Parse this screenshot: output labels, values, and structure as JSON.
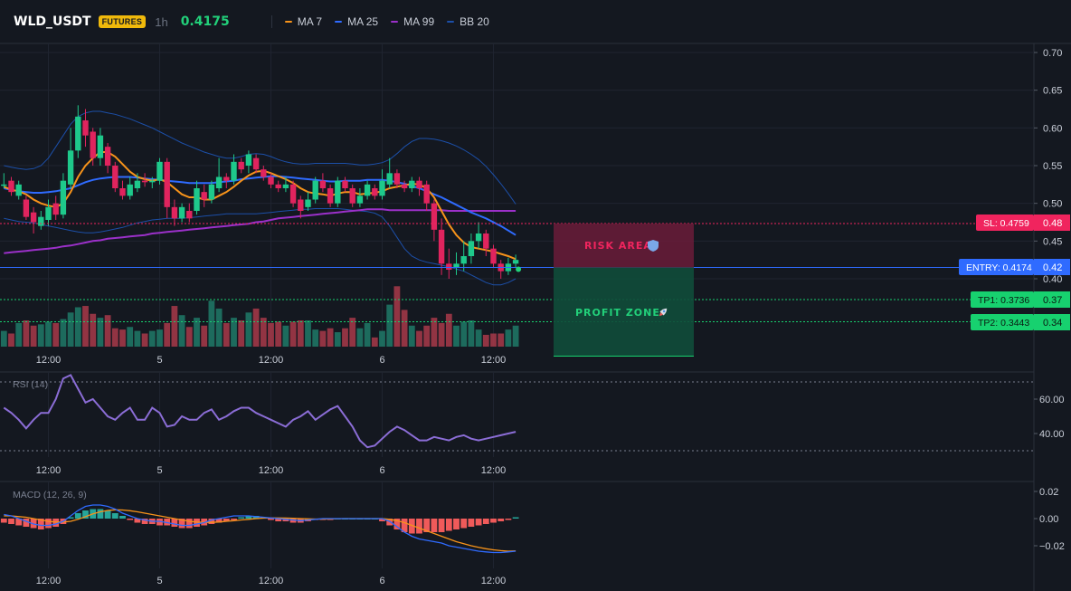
{
  "header": {
    "symbol": "WLD_USDT",
    "badge": "FUTURES",
    "timeframe": "1h",
    "price": "0.4175",
    "indicators": [
      {
        "label": "MA 7",
        "color": "#f7931a"
      },
      {
        "label": "MA 25",
        "color": "#2f6bff"
      },
      {
        "label": "MA 99",
        "color": "#9b30c9"
      },
      {
        "label": "BB 20",
        "color": "#1c4fa8"
      }
    ]
  },
  "colors": {
    "up": "#1ec98b",
    "down": "#e0245e",
    "vol_up": "#1e7a68",
    "vol_down": "#a83a4a",
    "rsi": "#8b6dd6",
    "macd": "#2f6bff",
    "signal": "#f7931a",
    "hist_pos": "#26a69a",
    "hist_neg": "#f05a5a",
    "sl": "#f0245e",
    "entry": "#2f6bff",
    "tp": "#17d16f"
  },
  "chart_data": [
    {
      "type": "candlestick",
      "panel": "price",
      "y_ticks": [
        "0.70",
        "0.65",
        "0.60",
        "0.55",
        "0.50",
        "0.45",
        "0.40"
      ],
      "ylim": [
        0.382,
        0.705
      ],
      "x_ticks": [
        {
          "index": 6,
          "label": "12:00"
        },
        {
          "index": 21,
          "label": "5"
        },
        {
          "index": 36,
          "label": "12:00"
        },
        {
          "index": 51,
          "label": "6"
        },
        {
          "index": 66,
          "label": "12:00"
        }
      ],
      "candles": [
        [
          0.525,
          0.525,
          0.54,
          0.52
        ],
        [
          0.53,
          0.515,
          0.535,
          0.51
        ],
        [
          0.51,
          0.525,
          0.53,
          0.505
        ],
        [
          0.505,
          0.482,
          0.51,
          0.478
        ],
        [
          0.488,
          0.475,
          0.495,
          0.46
        ],
        [
          0.47,
          0.482,
          0.49,
          0.465
        ],
        [
          0.478,
          0.495,
          0.505,
          0.47
        ],
        [
          0.5,
          0.485,
          0.51,
          0.478
        ],
        [
          0.485,
          0.53,
          0.54,
          0.48
        ],
        [
          0.525,
          0.57,
          0.6,
          0.52
        ],
        [
          0.57,
          0.615,
          0.63,
          0.56
        ],
        [
          0.61,
          0.59,
          0.625,
          0.575
        ],
        [
          0.595,
          0.56,
          0.6,
          0.55
        ],
        [
          0.56,
          0.59,
          0.6,
          0.55
        ],
        [
          0.575,
          0.55,
          0.58,
          0.54
        ],
        [
          0.55,
          0.52,
          0.555,
          0.515
        ],
        [
          0.52,
          0.51,
          0.53,
          0.505
        ],
        [
          0.51,
          0.525,
          0.535,
          0.505
        ],
        [
          0.52,
          0.53,
          0.54,
          0.515
        ],
        [
          0.53,
          0.528,
          0.54,
          0.522
        ],
        [
          0.528,
          0.53,
          0.535,
          0.52
        ],
        [
          0.53,
          0.555,
          0.56,
          0.525
        ],
        [
          0.555,
          0.495,
          0.56,
          0.48
        ],
        [
          0.495,
          0.48,
          0.505,
          0.47
        ],
        [
          0.48,
          0.495,
          0.5,
          0.475
        ],
        [
          0.49,
          0.48,
          0.5,
          0.475
        ],
        [
          0.49,
          0.52,
          0.53,
          0.485
        ],
        [
          0.515,
          0.505,
          0.525,
          0.495
        ],
        [
          0.505,
          0.525,
          0.53,
          0.5
        ],
        [
          0.52,
          0.535,
          0.56,
          0.515
        ],
        [
          0.535,
          0.53,
          0.54,
          0.52
        ],
        [
          0.53,
          0.555,
          0.565,
          0.525
        ],
        [
          0.555,
          0.545,
          0.56,
          0.54
        ],
        [
          0.55,
          0.565,
          0.57,
          0.54
        ],
        [
          0.56,
          0.545,
          0.565,
          0.54
        ],
        [
          0.545,
          0.535,
          0.55,
          0.53
        ],
        [
          0.535,
          0.525,
          0.54,
          0.52
        ],
        [
          0.525,
          0.52,
          0.53,
          0.515
        ],
        [
          0.52,
          0.525,
          0.535,
          0.515
        ],
        [
          0.525,
          0.5,
          0.53,
          0.495
        ],
        [
          0.505,
          0.49,
          0.51,
          0.48
        ],
        [
          0.495,
          0.505,
          0.515,
          0.49
        ],
        [
          0.505,
          0.53,
          0.535,
          0.5
        ],
        [
          0.53,
          0.52,
          0.54,
          0.515
        ],
        [
          0.52,
          0.5,
          0.525,
          0.495
        ],
        [
          0.5,
          0.53,
          0.535,
          0.495
        ],
        [
          0.53,
          0.52,
          0.535,
          0.515
        ],
        [
          0.52,
          0.5,
          0.525,
          0.495
        ],
        [
          0.5,
          0.51,
          0.52,
          0.495
        ],
        [
          0.51,
          0.525,
          0.53,
          0.505
        ],
        [
          0.52,
          0.51,
          0.525,
          0.505
        ],
        [
          0.51,
          0.53,
          0.545,
          0.505
        ],
        [
          0.525,
          0.54,
          0.56,
          0.52
        ],
        [
          0.54,
          0.525,
          0.545,
          0.52
        ],
        [
          0.525,
          0.52,
          0.53,
          0.515
        ],
        [
          0.52,
          0.53,
          0.535,
          0.515
        ],
        [
          0.53,
          0.52,
          0.535,
          0.51
        ],
        [
          0.525,
          0.5,
          0.53,
          0.49
        ],
        [
          0.5,
          0.465,
          0.505,
          0.45
        ],
        [
          0.465,
          0.42,
          0.48,
          0.405
        ],
        [
          0.42,
          0.412,
          0.44,
          0.4
        ],
        [
          0.415,
          0.42,
          0.435,
          0.405
        ],
        [
          0.42,
          0.43,
          0.45,
          0.41
        ],
        [
          0.43,
          0.45,
          0.46,
          0.42
        ],
        [
          0.45,
          0.46,
          0.475,
          0.44
        ],
        [
          0.46,
          0.44,
          0.465,
          0.43
        ],
        [
          0.44,
          0.42,
          0.445,
          0.415
        ],
        [
          0.42,
          0.41,
          0.425,
          0.4
        ],
        [
          0.41,
          0.42,
          0.428,
          0.405
        ],
        [
          0.42,
          0.425,
          0.432,
          0.415
        ]
      ],
      "ma7": [
        0.522,
        0.518,
        0.516,
        0.512,
        0.505,
        0.5,
        0.497,
        0.495,
        0.5,
        0.515,
        0.535,
        0.55,
        0.56,
        0.568,
        0.568,
        0.562,
        0.552,
        0.542,
        0.535,
        0.532,
        0.53,
        0.532,
        0.528,
        0.52,
        0.512,
        0.508,
        0.508,
        0.505,
        0.505,
        0.51,
        0.515,
        0.522,
        0.53,
        0.537,
        0.542,
        0.543,
        0.54,
        0.536,
        0.532,
        0.527,
        0.52,
        0.515,
        0.513,
        0.512,
        0.51,
        0.513,
        0.515,
        0.515,
        0.512,
        0.513,
        0.514,
        0.516,
        0.52,
        0.522,
        0.524,
        0.526,
        0.525,
        0.52,
        0.508,
        0.49,
        0.472,
        0.458,
        0.448,
        0.442,
        0.44,
        0.438,
        0.436,
        0.433,
        0.43,
        0.426
      ],
      "ma25": [
        0.52,
        0.518,
        0.516,
        0.515,
        0.514,
        0.514,
        0.515,
        0.516,
        0.518,
        0.52,
        0.524,
        0.528,
        0.531,
        0.533,
        0.534,
        0.535,
        0.535,
        0.535,
        0.534,
        0.533,
        0.532,
        0.531,
        0.53,
        0.529,
        0.528,
        0.527,
        0.527,
        0.527,
        0.527,
        0.528,
        0.529,
        0.53,
        0.532,
        0.533,
        0.534,
        0.535,
        0.536,
        0.536,
        0.535,
        0.534,
        0.533,
        0.532,
        0.531,
        0.53,
        0.529,
        0.529,
        0.53,
        0.53,
        0.53,
        0.531,
        0.531,
        0.531,
        0.53,
        0.528,
        0.526,
        0.523,
        0.52,
        0.516,
        0.512,
        0.508,
        0.503,
        0.498,
        0.493,
        0.488,
        0.484,
        0.48,
        0.475,
        0.47,
        0.464,
        0.458
      ],
      "ma99": [
        0.434,
        0.435,
        0.436,
        0.437,
        0.438,
        0.439,
        0.44,
        0.441,
        0.443,
        0.444,
        0.446,
        0.448,
        0.45,
        0.451,
        0.453,
        0.454,
        0.455,
        0.456,
        0.457,
        0.458,
        0.46,
        0.461,
        0.462,
        0.463,
        0.464,
        0.465,
        0.466,
        0.467,
        0.468,
        0.469,
        0.47,
        0.471,
        0.472,
        0.473,
        0.475,
        0.476,
        0.478,
        0.48,
        0.481,
        0.482,
        0.483,
        0.484,
        0.485,
        0.486,
        0.487,
        0.488,
        0.489,
        0.49,
        0.491,
        0.492,
        0.492,
        0.492,
        0.491,
        0.491,
        0.491,
        0.491,
        0.491,
        0.491,
        0.491,
        0.491,
        0.49,
        0.49,
        0.49,
        0.49,
        0.49,
        0.49,
        0.49,
        0.49,
        0.49,
        0.49
      ],
      "bb_upper": [
        0.55,
        0.548,
        0.546,
        0.545,
        0.546,
        0.55,
        0.56,
        0.575,
        0.59,
        0.605,
        0.615,
        0.62,
        0.622,
        0.622,
        0.62,
        0.618,
        0.615,
        0.612,
        0.608,
        0.604,
        0.6,
        0.595,
        0.59,
        0.585,
        0.58,
        0.576,
        0.572,
        0.568,
        0.565,
        0.562,
        0.56,
        0.56,
        0.562,
        0.565,
        0.566,
        0.565,
        0.562,
        0.558,
        0.555,
        0.553,
        0.552,
        0.552,
        0.553,
        0.553,
        0.553,
        0.553,
        0.553,
        0.552,
        0.551,
        0.551,
        0.552,
        0.554,
        0.558,
        0.566,
        0.575,
        0.582,
        0.586,
        0.586,
        0.585,
        0.583,
        0.58,
        0.576,
        0.571,
        0.565,
        0.558,
        0.549,
        0.538,
        0.526,
        0.513,
        0.499
      ],
      "bb_lower": [
        0.48,
        0.478,
        0.476,
        0.475,
        0.474,
        0.472,
        0.47,
        0.468,
        0.466,
        0.464,
        0.462,
        0.461,
        0.461,
        0.462,
        0.464,
        0.466,
        0.468,
        0.471,
        0.474,
        0.476,
        0.478,
        0.479,
        0.48,
        0.48,
        0.48,
        0.481,
        0.482,
        0.483,
        0.484,
        0.485,
        0.486,
        0.486,
        0.486,
        0.486,
        0.486,
        0.487,
        0.488,
        0.489,
        0.49,
        0.491,
        0.492,
        0.492,
        0.493,
        0.493,
        0.493,
        0.493,
        0.492,
        0.491,
        0.49,
        0.489,
        0.487,
        0.482,
        0.47,
        0.455,
        0.44,
        0.43,
        0.425,
        0.422,
        0.42,
        0.418,
        0.416,
        0.413,
        0.41,
        0.405,
        0.4,
        0.395,
        0.392,
        0.392,
        0.395,
        0.4
      ],
      "volume": [
        1.2,
        1.0,
        1.8,
        2.0,
        1.6,
        1.7,
        1.9,
        1.8,
        2.1,
        2.6,
        3.0,
        3.1,
        2.5,
        2.2,
        2.4,
        1.4,
        1.3,
        1.5,
        1.2,
        1.0,
        1.2,
        1.3,
        1.8,
        3.1,
        2.4,
        1.5,
        2.2,
        1.6,
        3.5,
        2.9,
        1.8,
        2.2,
        2.0,
        2.6,
        2.9,
        2.2,
        1.8,
        1.9,
        1.6,
        1.9,
        2.0,
        2.0,
        1.3,
        1.2,
        1.4,
        1.1,
        1.4,
        2.2,
        1.4,
        1.8,
        0.7,
        1.2,
        3.2,
        4.6,
        2.8,
        1.6,
        1.2,
        1.6,
        2.2,
        1.8,
        2.5,
        1.6,
        1.9,
        2.0,
        1.3,
        0.9,
        1.0,
        1.0,
        1.3,
        1.6
      ]
    },
    {
      "type": "line",
      "panel": "rsi",
      "title": "RSI (14)",
      "y_ticks": [
        "60.00",
        "40.00"
      ],
      "ylim": [
        26,
        82
      ],
      "levels": [
        70,
        30
      ],
      "values": [
        55,
        52,
        48,
        43,
        48,
        52,
        52,
        60,
        72,
        74,
        66,
        58,
        60,
        55,
        50,
        48,
        52,
        55,
        48,
        48,
        55,
        52,
        44,
        45,
        50,
        48,
        48,
        52,
        54,
        48,
        50,
        53,
        55,
        55,
        52,
        50,
        48,
        46,
        44,
        48,
        50,
        53,
        48,
        51,
        54,
        56,
        50,
        44,
        36,
        32,
        33,
        37,
        41,
        44,
        42,
        39,
        36,
        36,
        38,
        37,
        36,
        38,
        39,
        37,
        36,
        37,
        38,
        39,
        40,
        41
      ]
    },
    {
      "type": "bar+line",
      "panel": "macd",
      "title": "MACD (12, 26, 9)",
      "y_ticks": [
        "0.02",
        "0.00",
        "−0.02"
      ],
      "ylim": [
        -0.035,
        0.022
      ],
      "macd": [
        0.003,
        0.002,
        0.0,
        -0.002,
        -0.004,
        -0.005,
        -0.005,
        -0.004,
        -0.002,
        0.002,
        0.006,
        0.009,
        0.01,
        0.01,
        0.009,
        0.007,
        0.004,
        0.002,
        0.0,
        -0.001,
        -0.002,
        -0.002,
        -0.003,
        -0.004,
        -0.005,
        -0.005,
        -0.004,
        -0.003,
        -0.001,
        0.0,
        0.001,
        0.002,
        0.002,
        0.002,
        0.0015,
        0.001,
        0.0005,
        0.0,
        -0.0005,
        -0.001,
        -0.0015,
        -0.001,
        -0.0005,
        0.0,
        0.0,
        0.0,
        0.0,
        0.0,
        0.0,
        0.0,
        0.0,
        0.0,
        -0.002,
        -0.006,
        -0.01,
        -0.013,
        -0.015,
        -0.016,
        -0.017,
        -0.018,
        -0.02,
        -0.021,
        -0.022,
        -0.023,
        -0.024,
        -0.0245,
        -0.025,
        -0.025,
        -0.0245,
        -0.024
      ],
      "signal": [
        0.002,
        0.002,
        0.0015,
        0.001,
        0.0,
        -0.001,
        -0.002,
        -0.0025,
        -0.0025,
        -0.002,
        -0.0005,
        0.0015,
        0.0035,
        0.005,
        0.006,
        0.0065,
        0.0063,
        0.0058,
        0.005,
        0.004,
        0.003,
        0.002,
        0.001,
        0.0,
        -0.001,
        -0.002,
        -0.0025,
        -0.0028,
        -0.0028,
        -0.0025,
        -0.002,
        -0.0015,
        -0.001,
        -0.0005,
        0.0,
        0.0003,
        0.0005,
        0.0005,
        0.0004,
        0.0002,
        0.0,
        -0.0002,
        -0.0003,
        -0.0003,
        -0.0002,
        -0.0001,
        0.0,
        0.0,
        0.0,
        0.0,
        0.0,
        0.0,
        -0.0005,
        -0.0015,
        -0.003,
        -0.005,
        -0.007,
        -0.009,
        -0.011,
        -0.013,
        -0.015,
        -0.017,
        -0.0185,
        -0.02,
        -0.0212,
        -0.0222,
        -0.023,
        -0.0236,
        -0.024,
        -0.0238
      ],
      "histogram": [
        -0.003,
        -0.004,
        -0.005,
        -0.006,
        -0.007,
        -0.008,
        -0.007,
        -0.006,
        -0.004,
        0.001,
        0.004,
        0.006,
        0.007,
        0.007,
        0.006,
        0.004,
        0.002,
        -0.001,
        -0.003,
        -0.004,
        -0.004,
        -0.005,
        -0.005,
        -0.006,
        -0.007,
        -0.007,
        -0.006,
        -0.005,
        -0.004,
        -0.003,
        -0.002,
        -0.001,
        0.001,
        0.002,
        0.002,
        0.001,
        -0.001,
        -0.002,
        -0.002,
        -0.003,
        -0.003,
        -0.002,
        -0.001,
        -0.001,
        -0.001,
        0.0,
        0.0,
        0.0,
        0.0,
        0.0,
        0.0,
        -0.002,
        -0.005,
        -0.008,
        -0.01,
        -0.011,
        -0.011,
        -0.01,
        -0.01,
        -0.01,
        -0.009,
        -0.008,
        -0.007,
        -0.006,
        -0.005,
        -0.004,
        -0.003,
        -0.002,
        -0.001,
        0.001
      ]
    }
  ],
  "x_tick_labels_lower": [
    "12:00",
    "5",
    "12:00",
    "6",
    "12:00"
  ],
  "levels": {
    "sl": {
      "value": 0.4759,
      "label": "SL: 0.4759",
      "axis": "0.48"
    },
    "entry": {
      "value": 0.4174,
      "label": "ENTRY: 0.4174",
      "axis": "0.42"
    },
    "tp1": {
      "value": 0.3736,
      "label": "TP1: 0.3736",
      "axis": "0.37"
    },
    "tp2": {
      "value": 0.3443,
      "label": "TP2: 0.3443",
      "axis": "0.34"
    }
  },
  "zones": {
    "risk": {
      "label": "RISK AREA",
      "icon": "shield-icon"
    },
    "profit": {
      "label": "PROFIT ZONE",
      "icon": "rocket-icon"
    }
  }
}
